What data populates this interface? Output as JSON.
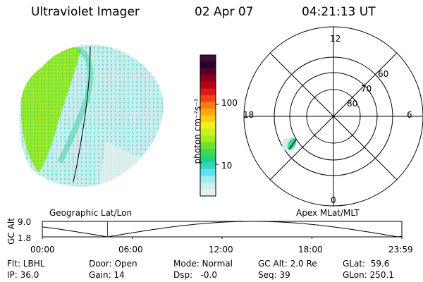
{
  "header": {
    "title": "Ultraviolet Imager",
    "date": "02 Apr 07",
    "time": "04:21:13 UT"
  },
  "colorbar": {
    "unit_label": "photon cm⁻²s⁻¹",
    "ticks": [
      "100",
      "10"
    ],
    "colors": [
      "#3d0a3a",
      "#2a0030",
      "#5a0028",
      "#8b0018",
      "#b8001a",
      "#dd1b1b",
      "#f04418",
      "#f87a10",
      "#f8a810",
      "#f8d010",
      "#f0f020",
      "#c8f020",
      "#a0ee20",
      "#70e030",
      "#40d850",
      "#20d088",
      "#30d8c0",
      "#60e0e8",
      "#a0ece8",
      "#d0f0f0",
      "#e4f2f2"
    ]
  },
  "polar_plot": {
    "mlt_labels": [
      "12",
      "18",
      "6",
      "0"
    ],
    "mlat_labels": [
      "60",
      "70",
      "80"
    ]
  },
  "timeline": {
    "left_title": "Geographic Lat/Lon",
    "right_title": "Apex MLat/MLT",
    "y_axis_label": "GC Alt",
    "y_ticks": [
      "9.0",
      "1.8"
    ],
    "x_ticks": [
      "00:00",
      "06:00",
      "12:00",
      "18:00",
      "23:59"
    ],
    "marker_color": "#cc0000",
    "marker_time_hours": 4.354
  },
  "status": {
    "filter": "Flt: LBHL",
    "door": "Door: Open",
    "mode": "Mode: Normal",
    "gc_alt": "GC Alt: 2.0 Re",
    "glat": "GLat:  59.6",
    "ip": "IP: 36.0",
    "gain": "Gain: 14",
    "dsp": "Dsp:   -0.0",
    "seq": "Seq: 39",
    "glon": "GLon: 250.1"
  }
}
